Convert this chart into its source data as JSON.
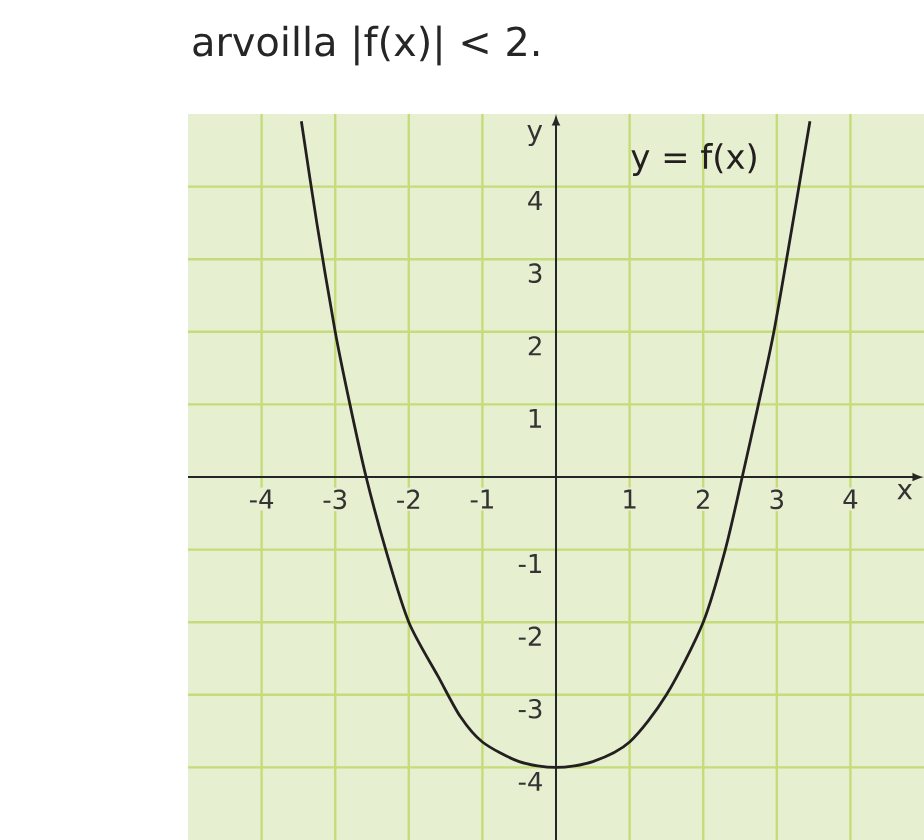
{
  "chart_data": {
    "type": "line",
    "title": "arvoilla |f(x)| < 2.",
    "xlabel": "x",
    "ylabel": "y",
    "x": [
      -3.46,
      -3.25,
      -3.0,
      -2.8,
      -2.58,
      -2.3,
      -2.0,
      -1.6,
      -1.3,
      -1.0,
      -0.5,
      0,
      0.5,
      1.0,
      1.5,
      2.0,
      2.3,
      2.53,
      2.75,
      2.96,
      3.2,
      3.45
    ],
    "series": [
      {
        "name": "y = f(x)",
        "color": "#231f20",
        "values": [
          4.9,
          3.5,
          2,
          1.0,
          0,
          -1.05,
          -2,
          -2.75,
          -3.3,
          -3.65,
          -3.92,
          -4,
          -3.92,
          -3.65,
          -3.0,
          -2,
          -1.0,
          0,
          1.0,
          2,
          3.4,
          4.9
        ]
      }
    ],
    "xlim": [
      -5,
      5
    ],
    "ylim": [
      -5,
      5
    ],
    "xticks": [
      -4,
      -3,
      -2,
      -1,
      1,
      2,
      3,
      4
    ],
    "yticks": [
      -4,
      -3,
      -2,
      -1,
      1,
      2,
      3,
      4
    ],
    "grid": true,
    "legend": false,
    "marker": "none",
    "line_style": "solid"
  }
}
